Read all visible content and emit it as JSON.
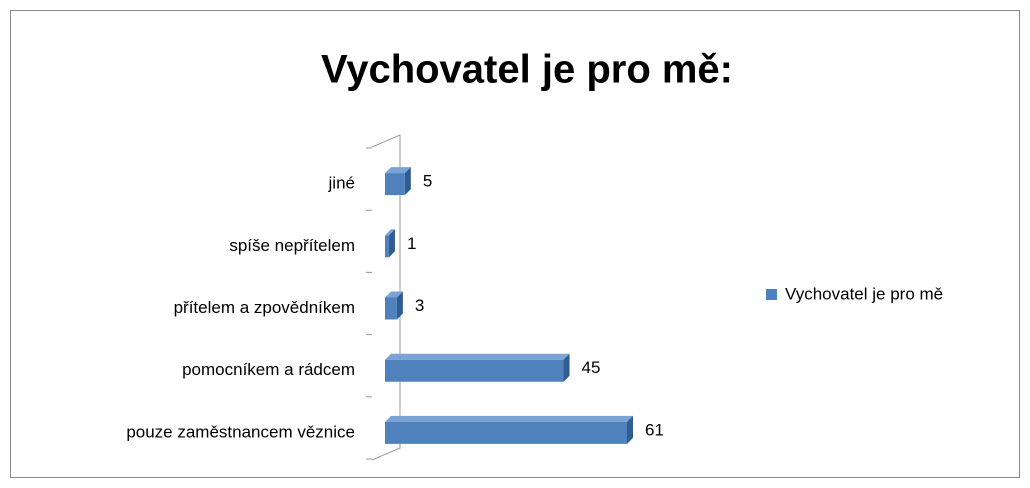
{
  "chart_data": {
    "type": "bar",
    "orientation": "horizontal",
    "title": "Vychovatel je pro mě:",
    "categories": [
      "jiné",
      "spíše nepřítelem",
      "přítelem a zpovědníkem",
      "pomocníkem a rádcem",
      "pouze zaměstnancem věznice"
    ],
    "series": [
      {
        "name": "Vychovatel je pro mě",
        "color": "#4f81bd",
        "values": [
          5,
          1,
          3,
          45,
          61
        ]
      }
    ],
    "legend": "right"
  }
}
